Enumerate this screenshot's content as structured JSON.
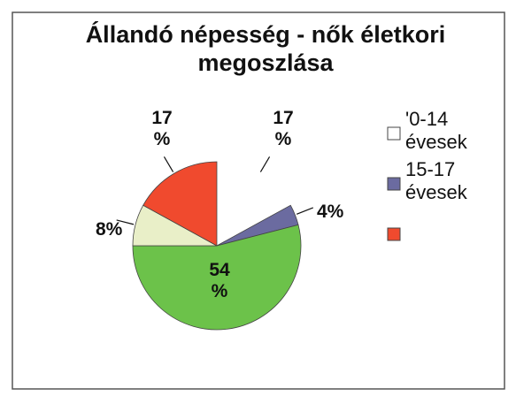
{
  "chart_data": {
    "type": "pie",
    "title": "Állandó népesség - nők életkori megoszlása",
    "values": [
      17,
      4,
      54,
      8,
      17
    ],
    "value_labels": [
      "17 %",
      "4%",
      "54 %",
      "8%",
      "17 %"
    ],
    "colors": [
      "#ffffff",
      "#6b6ba0",
      "#6cc24a",
      "#e9efc8",
      "#f04a2e"
    ],
    "legend": [
      {
        "label": "'0-14 évesek",
        "color": "#ffffff"
      },
      {
        "label": "15-17 évesek",
        "color": "#6b6ba0"
      },
      {
        "label": null,
        "color": "#f04a2e"
      }
    ]
  }
}
